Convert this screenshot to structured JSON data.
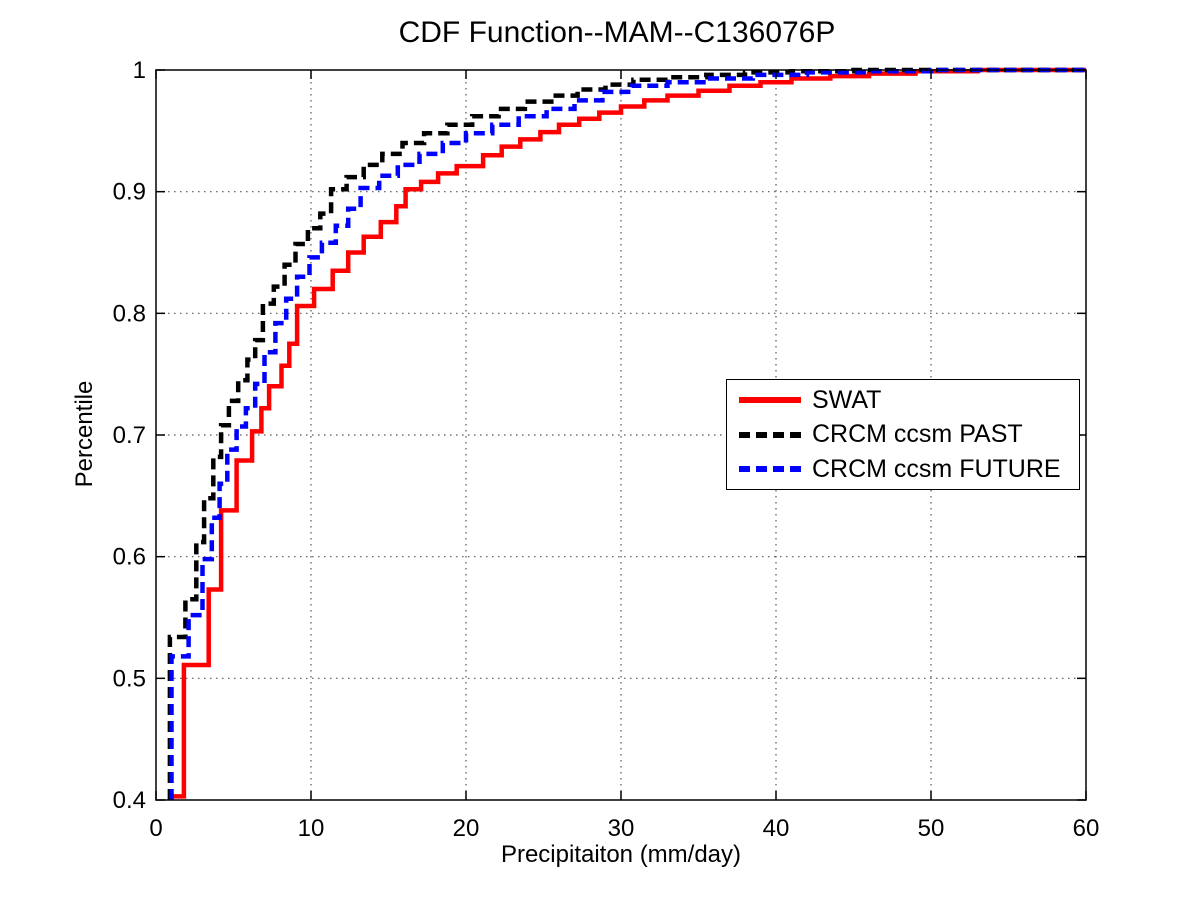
{
  "figure": {
    "background": "#ffffff",
    "axis_color": "#000000",
    "grid_color": "#555555"
  },
  "chart_data": {
    "type": "line",
    "variant": "step-cdf",
    "title": "CDF Function--MAM--C136076P",
    "xlabel": "Precipitaiton (mm/day)",
    "ylabel": "Percentile",
    "xlim": [
      0,
      60
    ],
    "ylim": [
      0.4,
      1
    ],
    "x_ticks": [
      0,
      10,
      20,
      30,
      40,
      50,
      60
    ],
    "x_tick_labels": [
      "0",
      "10",
      "20",
      "30",
      "40",
      "50",
      "60"
    ],
    "y_ticks": [
      0.4,
      0.5,
      0.6,
      0.7,
      0.8,
      0.9,
      1
    ],
    "y_tick_labels": [
      "0.4",
      "0.5",
      "0.6",
      "0.7",
      "0.8",
      "0.9",
      "1"
    ],
    "grid": "dotted",
    "legend_position": "middle-right",
    "series": [
      {
        "name": "SWAT",
        "color": "#ff0000",
        "style": "solid",
        "start": [
          1.0,
          0.403
        ],
        "steps": [
          [
            1.8,
            0.511
          ],
          [
            3.4,
            0.573
          ],
          [
            4.2,
            0.638
          ],
          [
            5.2,
            0.679
          ],
          [
            6.2,
            0.703
          ],
          [
            6.8,
            0.722
          ],
          [
            7.3,
            0.74
          ],
          [
            8.1,
            0.757
          ],
          [
            8.6,
            0.775
          ],
          [
            9.1,
            0.806
          ],
          [
            10.2,
            0.82
          ],
          [
            11.4,
            0.835
          ],
          [
            12.4,
            0.85
          ],
          [
            13.4,
            0.863
          ],
          [
            14.5,
            0.875
          ],
          [
            15.5,
            0.888
          ],
          [
            16.1,
            0.902
          ],
          [
            17.1,
            0.908
          ],
          [
            18.2,
            0.915
          ],
          [
            19.4,
            0.921
          ],
          [
            21.1,
            0.93
          ],
          [
            22.3,
            0.937
          ],
          [
            23.5,
            0.943
          ],
          [
            24.8,
            0.949
          ],
          [
            26.0,
            0.955
          ],
          [
            27.3,
            0.96
          ],
          [
            28.6,
            0.965
          ],
          [
            30.0,
            0.97
          ],
          [
            31.5,
            0.975
          ],
          [
            33.0,
            0.979
          ],
          [
            35.0,
            0.983
          ],
          [
            37.0,
            0.987
          ],
          [
            39.0,
            0.99
          ],
          [
            41.0,
            0.993
          ],
          [
            43.5,
            0.995
          ],
          [
            46.0,
            0.997
          ],
          [
            49.0,
            0.999
          ],
          [
            53.0,
            1.0
          ]
        ]
      },
      {
        "name": "CRCM ccsm PAST",
        "color": "#000000",
        "style": "dashed",
        "start": [
          0.9,
          0.4
        ],
        "steps": [
          [
            0.9,
            0.534
          ],
          [
            1.9,
            0.565
          ],
          [
            2.6,
            0.612
          ],
          [
            3.1,
            0.648
          ],
          [
            3.7,
            0.682
          ],
          [
            4.2,
            0.708
          ],
          [
            4.7,
            0.728
          ],
          [
            5.3,
            0.745
          ],
          [
            5.9,
            0.762
          ],
          [
            6.4,
            0.778
          ],
          [
            6.9,
            0.808
          ],
          [
            7.6,
            0.822
          ],
          [
            8.3,
            0.84
          ],
          [
            9.0,
            0.857
          ],
          [
            9.8,
            0.87
          ],
          [
            10.6,
            0.882
          ],
          [
            11.3,
            0.902
          ],
          [
            12.3,
            0.912
          ],
          [
            13.4,
            0.922
          ],
          [
            14.6,
            0.931
          ],
          [
            15.9,
            0.94
          ],
          [
            17.3,
            0.948
          ],
          [
            18.8,
            0.955
          ],
          [
            20.4,
            0.962
          ],
          [
            22.1,
            0.968
          ],
          [
            23.8,
            0.974
          ],
          [
            25.5,
            0.979
          ],
          [
            27.2,
            0.984
          ],
          [
            29.0,
            0.988
          ],
          [
            30.8,
            0.992
          ],
          [
            33.0,
            0.994
          ],
          [
            35.5,
            0.996
          ],
          [
            38.0,
            0.998
          ],
          [
            41.0,
            0.999
          ],
          [
            45.0,
            1.0
          ]
        ]
      },
      {
        "name": "CRCM ccsm FUTURE",
        "color": "#0000ff",
        "style": "dashed",
        "start": [
          1.0,
          0.4
        ],
        "steps": [
          [
            1.0,
            0.518
          ],
          [
            2.1,
            0.552
          ],
          [
            3.0,
            0.598
          ],
          [
            3.6,
            0.632
          ],
          [
            4.1,
            0.66
          ],
          [
            4.6,
            0.688
          ],
          [
            5.2,
            0.707
          ],
          [
            5.8,
            0.722
          ],
          [
            6.4,
            0.742
          ],
          [
            7.0,
            0.768
          ],
          [
            7.7,
            0.792
          ],
          [
            8.4,
            0.812
          ],
          [
            9.1,
            0.83
          ],
          [
            9.9,
            0.846
          ],
          [
            10.7,
            0.858
          ],
          [
            11.6,
            0.872
          ],
          [
            12.4,
            0.886
          ],
          [
            13.2,
            0.903
          ],
          [
            14.4,
            0.913
          ],
          [
            15.6,
            0.922
          ],
          [
            17.0,
            0.931
          ],
          [
            18.5,
            0.94
          ],
          [
            20.0,
            0.948
          ],
          [
            21.7,
            0.955
          ],
          [
            23.4,
            0.962
          ],
          [
            25.2,
            0.968
          ],
          [
            27.0,
            0.975
          ],
          [
            28.8,
            0.982
          ],
          [
            30.7,
            0.987
          ],
          [
            33.0,
            0.99
          ],
          [
            35.5,
            0.993
          ],
          [
            38.5,
            0.996
          ],
          [
            42.0,
            0.998
          ],
          [
            46.0,
            0.999
          ],
          [
            50.0,
            1.0
          ]
        ]
      }
    ]
  }
}
